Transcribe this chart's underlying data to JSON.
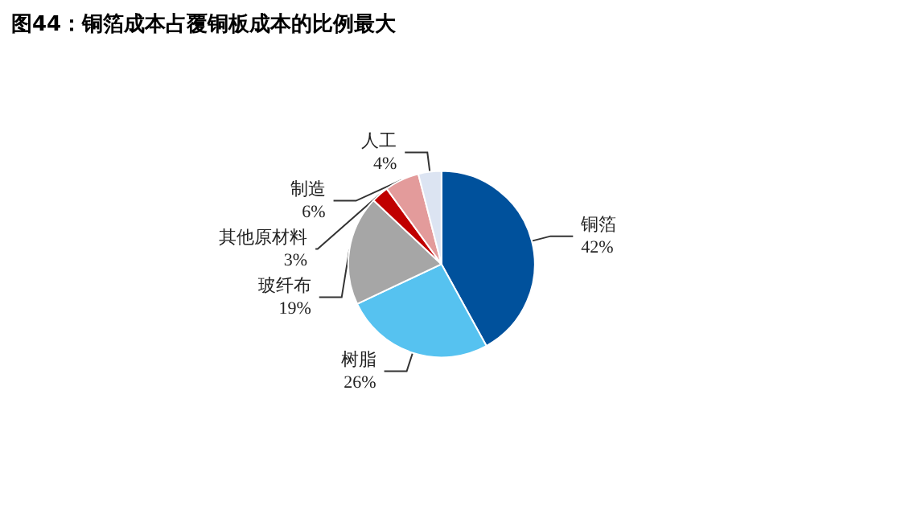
{
  "chart_data": {
    "type": "pie",
    "title": "图44：铜箔成本占覆铜板成本的比例最大",
    "categories": [
      "铜箔",
      "树脂",
      "玻纤布",
      "其他原材料",
      "制造",
      "人工"
    ],
    "values": [
      42,
      26,
      19,
      3,
      6,
      4
    ],
    "value_labels": [
      "42%",
      "26%",
      "19%",
      "3%",
      "6%",
      "4%"
    ],
    "colors": [
      "#00519c",
      "#56c2f0",
      "#a6a6a6",
      "#c00000",
      "#e39b9b",
      "#dce4f2"
    ]
  }
}
